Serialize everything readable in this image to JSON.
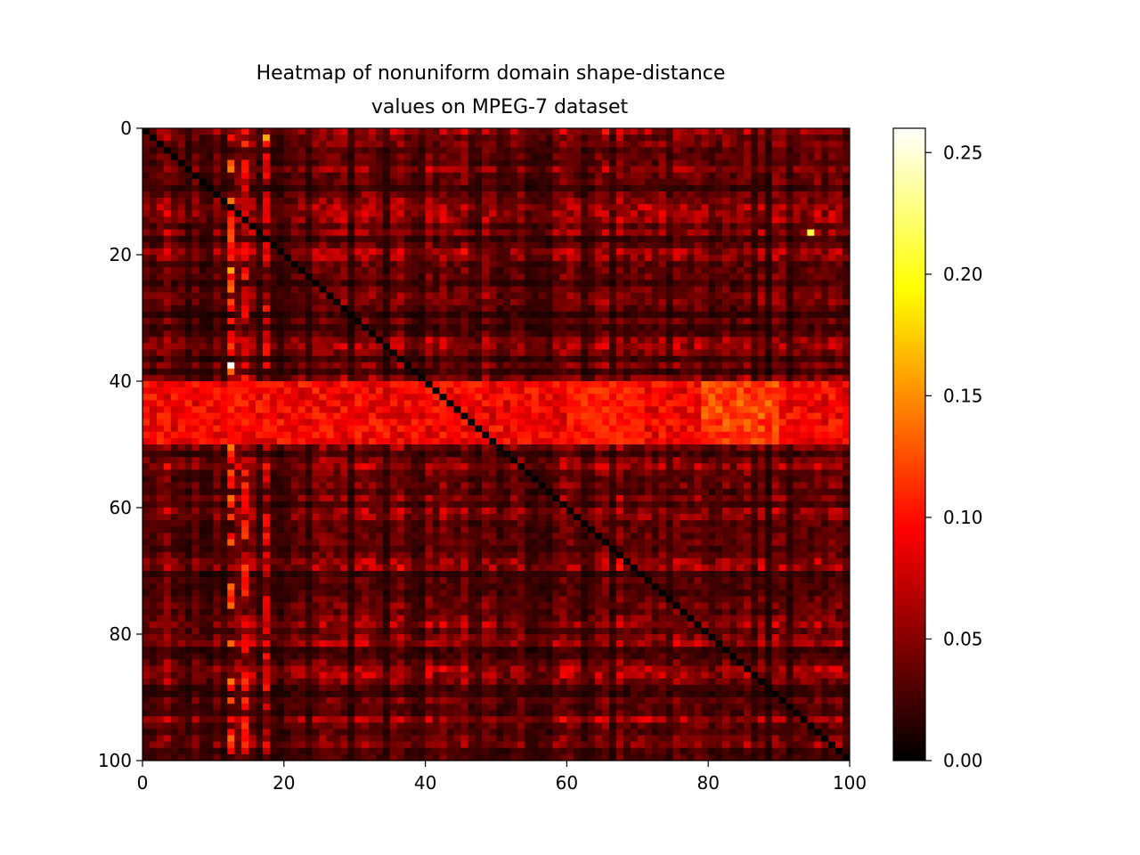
{
  "chart_data": {
    "type": "heatmap",
    "title_lines": [
      "Heatmap of nonuniform domain shape-distance",
      "values on MPEG-7 dataset"
    ],
    "xlabel": "",
    "ylabel": "",
    "grid": false,
    "x_range": [
      0,
      100
    ],
    "y_range": [
      0,
      100
    ],
    "y_inverted": true,
    "x_ticks": [
      0,
      20,
      40,
      60,
      80,
      100
    ],
    "y_ticks": [
      0,
      20,
      40,
      60,
      80,
      100
    ],
    "matrix_size": 100,
    "colormap": "hot",
    "colormap_stops": [
      "#000000",
      "#ff0000",
      "#ffff00",
      "#ffffff"
    ],
    "colorbar": {
      "range": [
        0.0,
        0.26
      ],
      "ticks": [
        0.0,
        0.05,
        0.1,
        0.15,
        0.2,
        0.25
      ],
      "tick_labels": [
        "0.00",
        "0.05",
        "0.10",
        "0.15",
        "0.20",
        "0.25"
      ]
    },
    "diagonal_value": 0.0,
    "max_value": 0.26,
    "row_band_high": {
      "rows": [
        40,
        49
      ],
      "typical_value": 0.1
    },
    "column_bands_high": [
      {
        "cols": [
          12,
          12
        ],
        "typical_value": 0.13
      },
      {
        "cols": [
          14,
          14
        ],
        "typical_value": 0.11
      },
      {
        "cols": [
          17,
          17
        ],
        "typical_value": 0.1
      }
    ],
    "block_highs": [
      {
        "rows": [
          40,
          49
        ],
        "cols": [
          60,
          69
        ],
        "typical_value": 0.11
      },
      {
        "rows": [
          40,
          49
        ],
        "cols": [
          79,
          89
        ],
        "typical_value": 0.13
      }
    ],
    "peak_cells": [
      {
        "row": 37,
        "col": 12,
        "value": 0.26
      },
      {
        "row": 16,
        "col": 94,
        "value": 0.21
      },
      {
        "row": 1,
        "col": 17,
        "value": 0.16
      },
      {
        "row": 22,
        "col": 12,
        "value": 0.16
      }
    ]
  }
}
